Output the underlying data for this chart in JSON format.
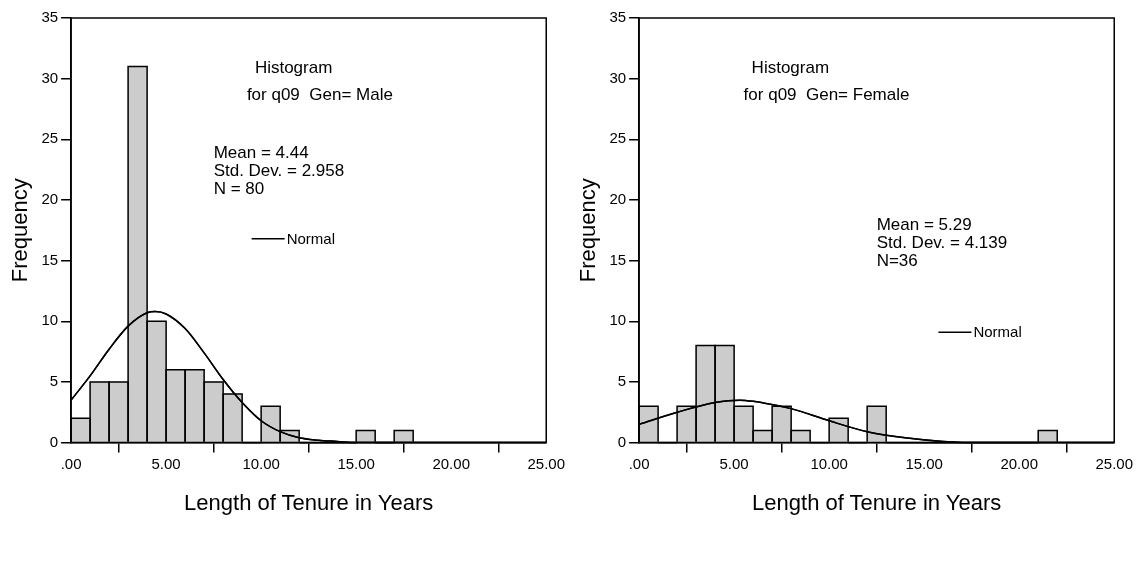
{
  "chart_data": [
    {
      "type": "histogram",
      "title": "Histogram",
      "subtitle": "for q09  Gen= Male",
      "xlabel": "Length of Tenure in Years",
      "ylabel": "Frequency",
      "annotations": [
        "Mean = 4.44",
        "Std. Dev. = 2.958",
        "N = 80"
      ],
      "bins": [
        0,
        1,
        2,
        3,
        4,
        5,
        6,
        7,
        8,
        9,
        10,
        11,
        12,
        13,
        14,
        15,
        16,
        17,
        18
      ],
      "values": [
        2,
        5,
        5,
        31,
        10,
        6,
        6,
        5,
        4,
        0,
        3,
        1,
        0,
        0,
        0,
        1,
        0,
        1
      ],
      "color": "#cccccc",
      "series": [
        {
          "type": "line",
          "name": "Normal",
          "color": "#000000",
          "x": [
            0,
            1,
            2,
            3,
            4,
            4.44,
            5,
            6,
            7,
            8,
            9,
            10,
            11,
            12,
            13,
            14,
            15,
            17,
            25
          ],
          "values": [
            3.5,
            5.5,
            7.7,
            9.6,
            10.7,
            10.8,
            10.6,
            9.4,
            7.4,
            5.2,
            3.3,
            1.8,
            0.9,
            0.4,
            0.2,
            0.1,
            0,
            0,
            0
          ]
        }
      ],
      "xlim": [
        0,
        25
      ],
      "xticks": [
        {
          "value": 0,
          "label": ".00"
        },
        {
          "value": 5,
          "label": "5.00"
        },
        {
          "value": 10,
          "label": "10.00"
        },
        {
          "value": 15,
          "label": "15.00"
        },
        {
          "value": 20,
          "label": "20.00"
        },
        {
          "value": 25,
          "label": "25.00"
        }
      ],
      "ylim": [
        0,
        35
      ],
      "yticks": [
        0,
        5,
        10,
        15,
        20,
        25,
        30,
        35
      ],
      "grid": false,
      "legend": "center",
      "marker": "none",
      "line_style": "solid"
    },
    {
      "type": "histogram",
      "title": "Histogram",
      "subtitle": "for q09  Gen= Female",
      "xlabel": "Length of Tenure in Years",
      "ylabel": "Frequency",
      "annotations": [
        "Mean = 5.29",
        "Std. Dev. = 4.139",
        "N=36"
      ],
      "bins": [
        0,
        1,
        2,
        3,
        4,
        5,
        6,
        7,
        8,
        9,
        10,
        11,
        12,
        13,
        14,
        15,
        16,
        17,
        18,
        19,
        20,
        21,
        22
      ],
      "values": [
        3,
        0,
        3,
        8,
        8,
        3,
        1,
        3,
        1,
        0,
        2,
        0,
        3,
        0,
        0,
        0,
        0,
        0,
        0,
        0,
        0,
        1
      ],
      "color": "#cccccc",
      "series": [
        {
          "type": "line",
          "name": "Normal",
          "color": "#000000",
          "x": [
            0,
            2,
            4,
            5.29,
            6,
            8,
            10,
            12,
            14,
            16,
            18,
            20,
            25
          ],
          "values": [
            1.5,
            2.5,
            3.3,
            3.5,
            3.4,
            2.8,
            1.8,
            0.9,
            0.4,
            0.1,
            0,
            0,
            0
          ]
        }
      ],
      "xlim": [
        0,
        25
      ],
      "xticks": [
        {
          "value": 0,
          "label": ".00"
        },
        {
          "value": 5,
          "label": "5.00"
        },
        {
          "value": 10,
          "label": "10.00"
        },
        {
          "value": 15,
          "label": "15.00"
        },
        {
          "value": 20,
          "label": "20.00"
        },
        {
          "value": 25,
          "label": "25.00"
        }
      ],
      "ylim": [
        0,
        35
      ],
      "yticks": [
        0,
        5,
        10,
        15,
        20,
        25,
        30,
        35
      ],
      "grid": false,
      "legend": "bottom right",
      "marker": "none",
      "line_style": "solid"
    }
  ]
}
